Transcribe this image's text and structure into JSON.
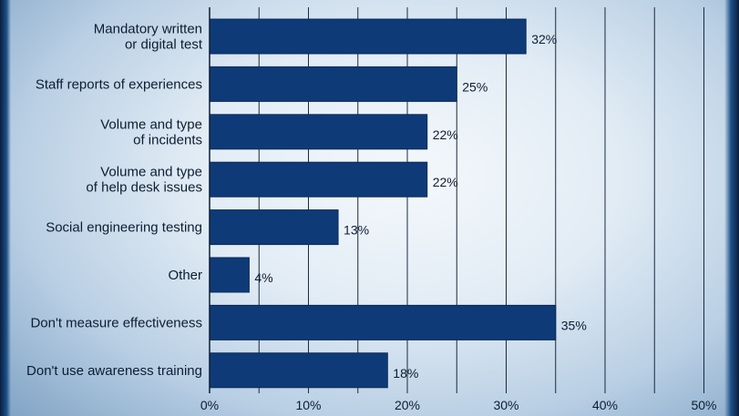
{
  "chart_data": {
    "type": "bar",
    "orientation": "horizontal",
    "categories": [
      [
        "Mandatory written",
        "or digital test"
      ],
      [
        "Staff reports of experiences"
      ],
      [
        "Volume and type",
        "of incidents"
      ],
      [
        "Volume and type",
        "of help desk issues"
      ],
      [
        "Social engineering testing"
      ],
      [
        "Other"
      ],
      [
        "Don't measure effectiveness"
      ],
      [
        "Don't use awareness training"
      ]
    ],
    "values": [
      32,
      25,
      22,
      22,
      13,
      4,
      35,
      18
    ],
    "value_labels": [
      "32%",
      "25%",
      "22%",
      "22%",
      "13%",
      "4%",
      "35%",
      "18%"
    ],
    "x_ticks": [
      0,
      10,
      20,
      30,
      40,
      50
    ],
    "x_tick_labels": [
      "0%",
      "10%",
      "20%",
      "30%",
      "40%",
      "50%"
    ],
    "xlim": [
      0,
      50
    ],
    "grid": true,
    "grid_step": 5,
    "bar_color": "#0f3a78",
    "title": "",
    "xlabel": "",
    "ylabel": ""
  }
}
